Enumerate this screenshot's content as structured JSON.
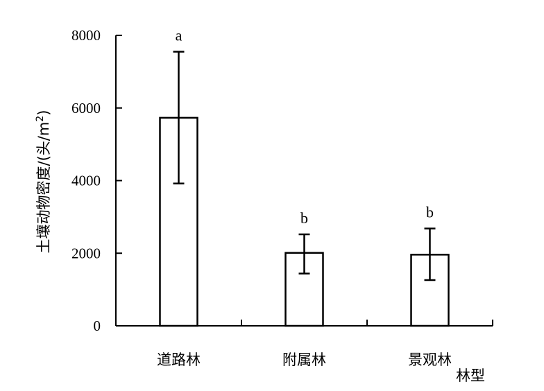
{
  "chart_data": {
    "type": "bar",
    "categories": [
      "道路林",
      "附属林",
      "景观林"
    ],
    "values": [
      5730,
      2010,
      1960
    ],
    "error_high": [
      7550,
      2520,
      2680
    ],
    "error_low": [
      3920,
      1440,
      1260
    ],
    "significance": [
      "a",
      "b",
      "b"
    ],
    "ylabel_prefix": "土壤动物密度/(头/m",
    "ylabel_sup": "2",
    "ylabel_suffix": ")",
    "xlabel": "林型",
    "ylim": [
      0,
      8000
    ],
    "yticks": [
      "0",
      "2000",
      "4000",
      "6000",
      "8000"
    ],
    "grid": false,
    "legend": "none",
    "colors": {
      "bar_fill": "#ffffff",
      "bar_stroke": "#000000",
      "axis": "#000000"
    }
  }
}
